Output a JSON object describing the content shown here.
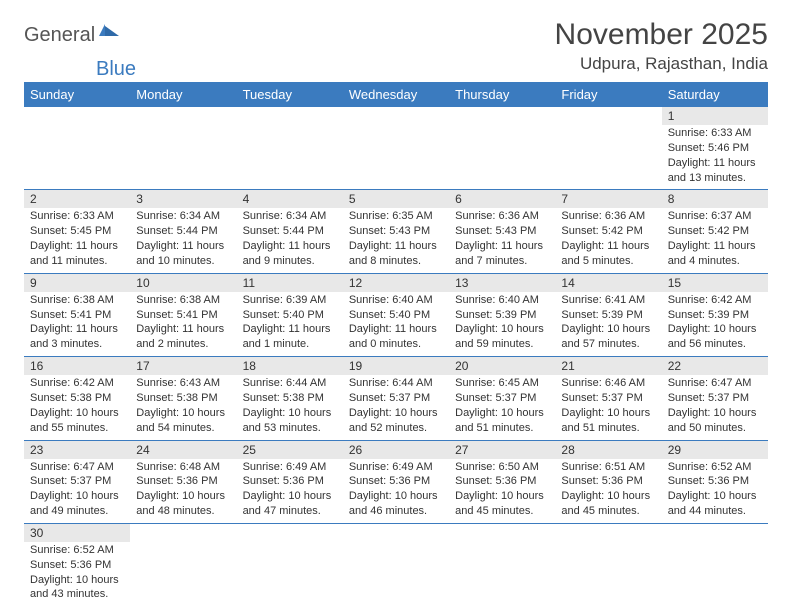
{
  "logo": {
    "text1": "General",
    "text2": "Blue"
  },
  "title": "November 2025",
  "location": "Udpura, Rajasthan, India",
  "colors": {
    "header_bg": "#3b7bbf",
    "header_text": "#ffffff",
    "daynum_bg": "#e8e8e8",
    "row_border": "#3b7bbf",
    "logo_gray": "#555555",
    "logo_blue": "#3b7bbf"
  },
  "weekdays": [
    "Sunday",
    "Monday",
    "Tuesday",
    "Wednesday",
    "Thursday",
    "Friday",
    "Saturday"
  ],
  "weeks": [
    [
      null,
      null,
      null,
      null,
      null,
      null,
      {
        "n": 1,
        "sunrise": "6:33 AM",
        "sunset": "5:46 PM",
        "daylight": "11 hours and 13 minutes."
      }
    ],
    [
      {
        "n": 2,
        "sunrise": "6:33 AM",
        "sunset": "5:45 PM",
        "daylight": "11 hours and 11 minutes."
      },
      {
        "n": 3,
        "sunrise": "6:34 AM",
        "sunset": "5:44 PM",
        "daylight": "11 hours and 10 minutes."
      },
      {
        "n": 4,
        "sunrise": "6:34 AM",
        "sunset": "5:44 PM",
        "daylight": "11 hours and 9 minutes."
      },
      {
        "n": 5,
        "sunrise": "6:35 AM",
        "sunset": "5:43 PM",
        "daylight": "11 hours and 8 minutes."
      },
      {
        "n": 6,
        "sunrise": "6:36 AM",
        "sunset": "5:43 PM",
        "daylight": "11 hours and 7 minutes."
      },
      {
        "n": 7,
        "sunrise": "6:36 AM",
        "sunset": "5:42 PM",
        "daylight": "11 hours and 5 minutes."
      },
      {
        "n": 8,
        "sunrise": "6:37 AM",
        "sunset": "5:42 PM",
        "daylight": "11 hours and 4 minutes."
      }
    ],
    [
      {
        "n": 9,
        "sunrise": "6:38 AM",
        "sunset": "5:41 PM",
        "daylight": "11 hours and 3 minutes."
      },
      {
        "n": 10,
        "sunrise": "6:38 AM",
        "sunset": "5:41 PM",
        "daylight": "11 hours and 2 minutes."
      },
      {
        "n": 11,
        "sunrise": "6:39 AM",
        "sunset": "5:40 PM",
        "daylight": "11 hours and 1 minute."
      },
      {
        "n": 12,
        "sunrise": "6:40 AM",
        "sunset": "5:40 PM",
        "daylight": "11 hours and 0 minutes."
      },
      {
        "n": 13,
        "sunrise": "6:40 AM",
        "sunset": "5:39 PM",
        "daylight": "10 hours and 59 minutes."
      },
      {
        "n": 14,
        "sunrise": "6:41 AM",
        "sunset": "5:39 PM",
        "daylight": "10 hours and 57 minutes."
      },
      {
        "n": 15,
        "sunrise": "6:42 AM",
        "sunset": "5:39 PM",
        "daylight": "10 hours and 56 minutes."
      }
    ],
    [
      {
        "n": 16,
        "sunrise": "6:42 AM",
        "sunset": "5:38 PM",
        "daylight": "10 hours and 55 minutes."
      },
      {
        "n": 17,
        "sunrise": "6:43 AM",
        "sunset": "5:38 PM",
        "daylight": "10 hours and 54 minutes."
      },
      {
        "n": 18,
        "sunrise": "6:44 AM",
        "sunset": "5:38 PM",
        "daylight": "10 hours and 53 minutes."
      },
      {
        "n": 19,
        "sunrise": "6:44 AM",
        "sunset": "5:37 PM",
        "daylight": "10 hours and 52 minutes."
      },
      {
        "n": 20,
        "sunrise": "6:45 AM",
        "sunset": "5:37 PM",
        "daylight": "10 hours and 51 minutes."
      },
      {
        "n": 21,
        "sunrise": "6:46 AM",
        "sunset": "5:37 PM",
        "daylight": "10 hours and 51 minutes."
      },
      {
        "n": 22,
        "sunrise": "6:47 AM",
        "sunset": "5:37 PM",
        "daylight": "10 hours and 50 minutes."
      }
    ],
    [
      {
        "n": 23,
        "sunrise": "6:47 AM",
        "sunset": "5:37 PM",
        "daylight": "10 hours and 49 minutes."
      },
      {
        "n": 24,
        "sunrise": "6:48 AM",
        "sunset": "5:36 PM",
        "daylight": "10 hours and 48 minutes."
      },
      {
        "n": 25,
        "sunrise": "6:49 AM",
        "sunset": "5:36 PM",
        "daylight": "10 hours and 47 minutes."
      },
      {
        "n": 26,
        "sunrise": "6:49 AM",
        "sunset": "5:36 PM",
        "daylight": "10 hours and 46 minutes."
      },
      {
        "n": 27,
        "sunrise": "6:50 AM",
        "sunset": "5:36 PM",
        "daylight": "10 hours and 45 minutes."
      },
      {
        "n": 28,
        "sunrise": "6:51 AM",
        "sunset": "5:36 PM",
        "daylight": "10 hours and 45 minutes."
      },
      {
        "n": 29,
        "sunrise": "6:52 AM",
        "sunset": "5:36 PM",
        "daylight": "10 hours and 44 minutes."
      }
    ],
    [
      {
        "n": 30,
        "sunrise": "6:52 AM",
        "sunset": "5:36 PM",
        "daylight": "10 hours and 43 minutes."
      },
      null,
      null,
      null,
      null,
      null,
      null
    ]
  ],
  "labels": {
    "sunrise": "Sunrise:",
    "sunset": "Sunset:",
    "daylight": "Daylight:"
  }
}
